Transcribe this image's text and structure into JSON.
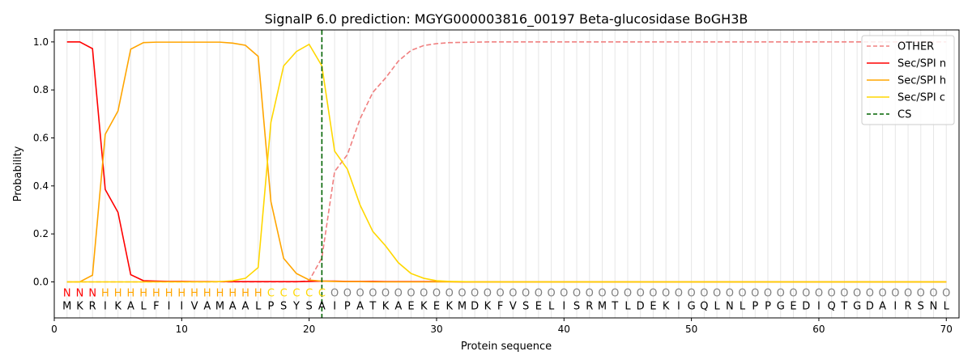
{
  "chart_data": {
    "type": "line",
    "title": "SignalP 6.0 prediction: MGYG000003816_00197 Beta-glucosidase BoGH3B",
    "xlabel": "Protein sequence",
    "ylabel": "Probability",
    "xlim": [
      0,
      71
    ],
    "ylim": [
      -0.15,
      1.05
    ],
    "xticks": [
      0,
      10,
      20,
      30,
      40,
      50,
      60,
      70
    ],
    "yticks": [
      0.0,
      0.2,
      0.4,
      0.6,
      0.8,
      1.0
    ],
    "grid": "vertical lines at each residue",
    "legend_position": "top-right",
    "colors": {
      "OTHER": "#f08080",
      "Sec/SPI n": "#ff0000",
      "Sec/SPI h": "#ffa500",
      "Sec/SPI c": "#ffd700",
      "CS": "#006400",
      "O_label": "#808080",
      "grid": "#e6e6e6"
    },
    "sequence": "MKRIKALFIIVAMAALPSYSAIPATKAEKEKMDKFVSELISRMTLDEKIGQLNLPPGEDIQTGDAIRSNL",
    "region_labels": "NNNHHHHHHHHHHHHHCCCCCOOOOOOOOOOOOOOOOOOOOOOOOOOOOOOOOOOOOOOOOOOOOOOOOO",
    "cs_position": 21,
    "series": [
      {
        "name": "OTHER",
        "style": "dashed",
        "values": [
          0,
          0,
          0,
          0,
          0,
          0,
          0,
          0,
          0,
          0,
          0,
          0,
          0,
          0,
          0,
          0,
          0,
          0,
          0,
          0.005,
          0.1,
          0.46,
          0.53,
          0.68,
          0.79,
          0.85,
          0.92,
          0.965,
          0.985,
          0.993,
          0.997,
          0.998,
          0.999,
          1,
          1,
          1,
          1,
          1,
          1,
          1,
          1,
          1,
          1,
          1,
          1,
          1,
          1,
          1,
          1,
          1,
          1,
          1,
          1,
          1,
          1,
          1,
          1,
          1,
          1,
          1,
          1,
          1,
          1,
          1,
          1,
          1,
          1,
          1,
          1,
          1
        ]
      },
      {
        "name": "Sec/SPI n",
        "style": "solid",
        "values": [
          1.0,
          1.0,
          0.972,
          0.385,
          0.29,
          0.03,
          0.005,
          0.003,
          0.002,
          0.002,
          0.001,
          0.001,
          0.001,
          0.001,
          0.001,
          0.001,
          0.001,
          0.001,
          0.001,
          0.002,
          0.003,
          0.003,
          0.002,
          0.002,
          0.002,
          0.001,
          0.001,
          0.001,
          0.001,
          0.001,
          0.001,
          0,
          0,
          0,
          0,
          0,
          0,
          0,
          0,
          0,
          0,
          0,
          0,
          0,
          0,
          0,
          0,
          0,
          0,
          0,
          0,
          0,
          0,
          0,
          0,
          0,
          0,
          0,
          0,
          0,
          0,
          0,
          0,
          0,
          0,
          0,
          0,
          0,
          0,
          0
        ]
      },
      {
        "name": "Sec/SPI h",
        "style": "solid",
        "values": [
          0,
          0,
          0.028,
          0.615,
          0.712,
          0.97,
          0.997,
          0.999,
          0.999,
          0.999,
          0.999,
          0.999,
          0.999,
          0.995,
          0.986,
          0.94,
          0.335,
          0.098,
          0.035,
          0.008,
          0.003,
          0.002,
          0.001,
          0.001,
          0,
          0,
          0,
          0,
          0,
          0,
          0,
          0,
          0,
          0,
          0,
          0,
          0,
          0,
          0,
          0,
          0,
          0,
          0,
          0,
          0,
          0,
          0,
          0,
          0,
          0,
          0,
          0,
          0,
          0,
          0,
          0,
          0,
          0,
          0,
          0,
          0,
          0,
          0,
          0,
          0,
          0,
          0,
          0,
          0,
          0
        ]
      },
      {
        "name": "Sec/SPI c",
        "style": "solid",
        "values": [
          0,
          0,
          0,
          0,
          0,
          0,
          0,
          0,
          0,
          0,
          0,
          0,
          0.001,
          0.005,
          0.015,
          0.06,
          0.665,
          0.9,
          0.96,
          0.99,
          0.9,
          0.545,
          0.47,
          0.32,
          0.21,
          0.15,
          0.08,
          0.035,
          0.015,
          0.005,
          0.002,
          0.001,
          0,
          0,
          0,
          0,
          0,
          0,
          0,
          0,
          0,
          0,
          0,
          0,
          0,
          0,
          0,
          0,
          0,
          0,
          0,
          0,
          0,
          0,
          0,
          0,
          0,
          0,
          0,
          0,
          0,
          0,
          0,
          0,
          0,
          0,
          0,
          0,
          0,
          0
        ]
      }
    ],
    "legend_entries": [
      "OTHER",
      "Sec/SPI n",
      "Sec/SPI h",
      "Sec/SPI c",
      "CS"
    ]
  }
}
